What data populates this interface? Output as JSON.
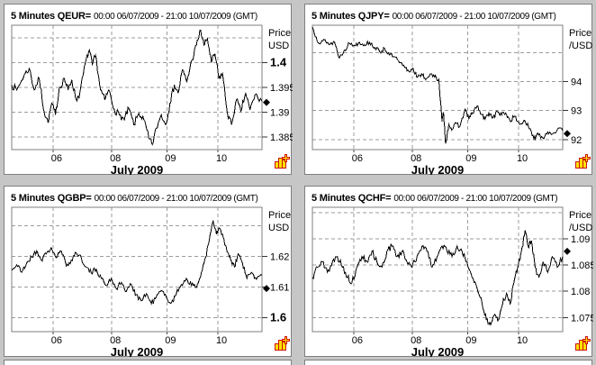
{
  "window": {
    "background": "#c6c6c6",
    "panel_background": "#ffffff",
    "panel_border": "#7f7f7f",
    "gridline_color": "#9b9b9b",
    "series_color": "#000000",
    "icon_yellow": "#ffe000",
    "icon_red": "#cc1111",
    "corner_icon": "chart-object-icon"
  },
  "chart_data": [
    {
      "type": "line",
      "instrument": "QEUR=",
      "title_bold": "5 Minutes QEUR=",
      "title_range": "00:00 06/07/2009 - 21:00 10/07/2009 (GMT)",
      "price_axis_line1": "Price",
      "price_axis_line2": "USD",
      "xlabel": "July 2009",
      "x_ticks": [
        {
          "pos": 0.165,
          "label": "06"
        },
        {
          "pos": 0.4,
          "label": "08"
        },
        {
          "pos": 0.62,
          "label": "09"
        },
        {
          "pos": 0.824,
          "label": "10"
        }
      ],
      "ylim": [
        1.3825,
        1.4075
      ],
      "gridlines": [
        1.405,
        1.4,
        1.395,
        1.39,
        1.385
      ],
      "y_ticks": [
        {
          "value": 1.4,
          "label": "1.4",
          "bold": true
        },
        {
          "value": 1.395,
          "label": "1.395",
          "bold": false
        },
        {
          "value": 1.39,
          "label": "1.39",
          "bold": false
        },
        {
          "value": 1.385,
          "label": "1.385",
          "bold": false
        }
      ],
      "last_price": 1.392,
      "noise_amplitude": 0.0007,
      "seed": 7,
      "points": [
        [
          0.0,
          1.3955
        ],
        [
          0.02,
          1.3945
        ],
        [
          0.05,
          1.3975
        ],
        [
          0.07,
          1.3988
        ],
        [
          0.09,
          1.3945
        ],
        [
          0.11,
          1.3968
        ],
        [
          0.13,
          1.39
        ],
        [
          0.145,
          1.388
        ],
        [
          0.16,
          1.3918
        ],
        [
          0.175,
          1.3895
        ],
        [
          0.19,
          1.3948
        ],
        [
          0.21,
          1.3968
        ],
        [
          0.225,
          1.3945
        ],
        [
          0.24,
          1.3965
        ],
        [
          0.258,
          1.3925
        ],
        [
          0.272,
          1.3938
        ],
        [
          0.295,
          1.4
        ],
        [
          0.31,
          1.4025
        ],
        [
          0.322,
          1.3995
        ],
        [
          0.335,
          1.4015
        ],
        [
          0.355,
          1.3945
        ],
        [
          0.372,
          1.3925
        ],
        [
          0.388,
          1.3945
        ],
        [
          0.41,
          1.3905
        ],
        [
          0.43,
          1.3895
        ],
        [
          0.45,
          1.3885
        ],
        [
          0.468,
          1.3908
        ],
        [
          0.488,
          1.3875
        ],
        [
          0.508,
          1.3898
        ],
        [
          0.528,
          1.3885
        ],
        [
          0.548,
          1.3848
        ],
        [
          0.562,
          1.3835
        ],
        [
          0.578,
          1.3868
        ],
        [
          0.598,
          1.3895
        ],
        [
          0.615,
          1.3875
        ],
        [
          0.632,
          1.3918
        ],
        [
          0.65,
          1.3955
        ],
        [
          0.665,
          1.3938
        ],
        [
          0.682,
          1.3985
        ],
        [
          0.7,
          1.3962
        ],
        [
          0.72,
          1.4005
        ],
        [
          0.738,
          1.4035
        ],
        [
          0.755,
          1.4065
        ],
        [
          0.768,
          1.4035
        ],
        [
          0.782,
          1.4048
        ],
        [
          0.798,
          1.4
        ],
        [
          0.812,
          1.4018
        ],
        [
          0.828,
          1.3968
        ],
        [
          0.842,
          1.3978
        ],
        [
          0.862,
          1.3898
        ],
        [
          0.878,
          1.3875
        ],
        [
          0.898,
          1.3925
        ],
        [
          0.915,
          1.3902
        ],
        [
          0.935,
          1.3938
        ],
        [
          0.952,
          1.3905
        ],
        [
          0.972,
          1.3935
        ],
        [
          1.0,
          1.3922
        ]
      ]
    },
    {
      "type": "line",
      "instrument": "QJPY=",
      "title_bold": "5 Minutes QJPY=",
      "title_range": "00:00 06/07/2009 - 21:00 10/07/2009 (GMT)",
      "price_axis_line1": "Price",
      "price_axis_line2": "/USD",
      "xlabel": "July 2009",
      "x_ticks": [
        {
          "pos": 0.165,
          "label": "06"
        },
        {
          "pos": 0.4,
          "label": "08"
        },
        {
          "pos": 0.62,
          "label": "09"
        },
        {
          "pos": 0.824,
          "label": "10"
        }
      ],
      "ylim": [
        91.65,
        95.95
      ],
      "gridlines": [
        95,
        94,
        93,
        92
      ],
      "y_ticks": [
        {
          "value": 94,
          "label": "94",
          "bold": false
        },
        {
          "value": 93,
          "label": "93",
          "bold": false
        },
        {
          "value": 92,
          "label": "92",
          "bold": false
        }
      ],
      "last_price": 92.2,
      "noise_amplitude": 0.08,
      "seed": 13,
      "points": [
        [
          0.0,
          95.88
        ],
        [
          0.015,
          95.55
        ],
        [
          0.03,
          95.3
        ],
        [
          0.05,
          95.45
        ],
        [
          0.068,
          95.28
        ],
        [
          0.088,
          95.38
        ],
        [
          0.108,
          94.82
        ],
        [
          0.128,
          95.1
        ],
        [
          0.148,
          95.32
        ],
        [
          0.168,
          95.25
        ],
        [
          0.188,
          95.36
        ],
        [
          0.208,
          95.28
        ],
        [
          0.228,
          95.36
        ],
        [
          0.25,
          95.18
        ],
        [
          0.27,
          95.02
        ],
        [
          0.288,
          95.16
        ],
        [
          0.308,
          94.92
        ],
        [
          0.328,
          94.86
        ],
        [
          0.348,
          94.65
        ],
        [
          0.368,
          94.5
        ],
        [
          0.385,
          94.35
        ],
        [
          0.402,
          94.46
        ],
        [
          0.42,
          94.15
        ],
        [
          0.44,
          94.22
        ],
        [
          0.455,
          94.1
        ],
        [
          0.47,
          94.26
        ],
        [
          0.488,
          94.16
        ],
        [
          0.505,
          94.08
        ],
        [
          0.518,
          92.62
        ],
        [
          0.524,
          92.92
        ],
        [
          0.532,
          91.86
        ],
        [
          0.545,
          92.52
        ],
        [
          0.56,
          92.35
        ],
        [
          0.575,
          92.56
        ],
        [
          0.59,
          92.45
        ],
        [
          0.61,
          93.05
        ],
        [
          0.625,
          92.72
        ],
        [
          0.64,
          92.92
        ],
        [
          0.658,
          93.16
        ],
        [
          0.675,
          92.86
        ],
        [
          0.69,
          92.7
        ],
        [
          0.705,
          92.92
        ],
        [
          0.722,
          92.76
        ],
        [
          0.74,
          92.96
        ],
        [
          0.756,
          92.85
        ],
        [
          0.772,
          92.92
        ],
        [
          0.79,
          92.65
        ],
        [
          0.808,
          92.8
        ],
        [
          0.828,
          92.52
        ],
        [
          0.848,
          92.66
        ],
        [
          0.868,
          92.36
        ],
        [
          0.885,
          92.02
        ],
        [
          0.9,
          92.22
        ],
        [
          0.92,
          92.06
        ],
        [
          0.94,
          92.26
        ],
        [
          0.96,
          92.2
        ],
        [
          0.98,
          92.36
        ],
        [
          1.0,
          92.3
        ]
      ]
    },
    {
      "type": "line",
      "instrument": "QGBP=",
      "title_bold": "5 Minutes QGBP=",
      "title_range": "00:00 06/07/2009 - 21:00 10/07/2009 (GMT)",
      "price_axis_line1": "Price",
      "price_axis_line2": "USD",
      "xlabel": "July 2009",
      "x_ticks": [
        {
          "pos": 0.165,
          "label": "06"
        },
        {
          "pos": 0.4,
          "label": "08"
        },
        {
          "pos": 0.62,
          "label": "09"
        },
        {
          "pos": 0.824,
          "label": "10"
        }
      ],
      "ylim": [
        1.5954,
        1.636
      ],
      "gridlines": [
        1.63,
        1.62,
        1.61,
        1.6
      ],
      "y_ticks": [
        {
          "value": 1.62,
          "label": "1.62",
          "bold": false
        },
        {
          "value": 1.61,
          "label": "1.61",
          "bold": false
        },
        {
          "value": 1.6,
          "label": "1.6",
          "bold": true
        }
      ],
      "last_price": 1.6095,
      "noise_amplitude": 0.0009,
      "seed": 21,
      "points": [
        [
          0.0,
          1.6155
        ],
        [
          0.02,
          1.6172
        ],
        [
          0.04,
          1.6148
        ],
        [
          0.06,
          1.6178
        ],
        [
          0.08,
          1.6198
        ],
        [
          0.1,
          1.6218
        ],
        [
          0.118,
          1.6188
        ],
        [
          0.138,
          1.6208
        ],
        [
          0.158,
          1.6228
        ],
        [
          0.178,
          1.6195
        ],
        [
          0.198,
          1.6218
        ],
        [
          0.218,
          1.6168
        ],
        [
          0.238,
          1.6188
        ],
        [
          0.258,
          1.6212
        ],
        [
          0.278,
          1.6195
        ],
        [
          0.298,
          1.6165
        ],
        [
          0.318,
          1.6145
        ],
        [
          0.338,
          1.6158
        ],
        [
          0.358,
          1.6128
        ],
        [
          0.378,
          1.6105
        ],
        [
          0.398,
          1.6128
        ],
        [
          0.418,
          1.6095
        ],
        [
          0.438,
          1.6115
        ],
        [
          0.458,
          1.6085
        ],
        [
          0.478,
          1.6108
        ],
        [
          0.498,
          1.6075
        ],
        [
          0.518,
          1.6055
        ],
        [
          0.538,
          1.6078
        ],
        [
          0.558,
          1.6045
        ],
        [
          0.578,
          1.6068
        ],
        [
          0.598,
          1.6088
        ],
        [
          0.618,
          1.6065
        ],
        [
          0.638,
          1.6048
        ],
        [
          0.658,
          1.6078
        ],
        [
          0.678,
          1.6108
        ],
        [
          0.698,
          1.6128
        ],
        [
          0.718,
          1.6105
        ],
        [
          0.738,
          1.6098
        ],
        [
          0.758,
          1.6148
        ],
        [
          0.775,
          1.6198
        ],
        [
          0.79,
          1.6255
        ],
        [
          0.805,
          1.6315
        ],
        [
          0.818,
          1.6272
        ],
        [
          0.83,
          1.6292
        ],
        [
          0.845,
          1.6262
        ],
        [
          0.86,
          1.6215
        ],
        [
          0.875,
          1.6188
        ],
        [
          0.89,
          1.6165
        ],
        [
          0.905,
          1.6208
        ],
        [
          0.922,
          1.6178
        ],
        [
          0.94,
          1.6128
        ],
        [
          0.958,
          1.6148
        ],
        [
          0.978,
          1.6125
        ],
        [
          1.0,
          1.6138
        ]
      ]
    },
    {
      "type": "line",
      "instrument": "QCHF=",
      "title_bold": "5 Minutes QCHF=",
      "title_range": "00:00 06/07/2009 - 21:00 10/07/2009 (GMT)",
      "price_axis_line1": "Price",
      "price_axis_line2": "/USD",
      "xlabel": "July 2009",
      "x_ticks": [
        {
          "pos": 0.165,
          "label": "06"
        },
        {
          "pos": 0.4,
          "label": "08"
        },
        {
          "pos": 0.62,
          "label": "09"
        },
        {
          "pos": 0.824,
          "label": "10"
        }
      ],
      "ylim": [
        1.0723,
        1.096
      ],
      "gridlines": [
        1.095,
        1.09,
        1.085,
        1.08,
        1.075
      ],
      "y_ticks": [
        {
          "value": 1.09,
          "label": "1.09",
          "bold": false
        },
        {
          "value": 1.085,
          "label": "1.085",
          "bold": false
        },
        {
          "value": 1.08,
          "label": "1.08",
          "bold": false
        },
        {
          "value": 1.075,
          "label": "1.075",
          "bold": false
        }
      ],
      "last_price": 1.0876,
      "noise_amplitude": 0.0006,
      "seed": 35,
      "points": [
        [
          0.0,
          1.0826
        ],
        [
          0.02,
          1.0846
        ],
        [
          0.04,
          1.0856
        ],
        [
          0.06,
          1.0836
        ],
        [
          0.08,
          1.0856
        ],
        [
          0.1,
          1.0866
        ],
        [
          0.12,
          1.0846
        ],
        [
          0.14,
          1.0826
        ],
        [
          0.158,
          1.0816
        ],
        [
          0.178,
          1.0846
        ],
        [
          0.198,
          1.0866
        ],
        [
          0.218,
          1.0856
        ],
        [
          0.238,
          1.0876
        ],
        [
          0.258,
          1.0856
        ],
        [
          0.278,
          1.0846
        ],
        [
          0.298,
          1.0876
        ],
        [
          0.318,
          1.0886
        ],
        [
          0.338,
          1.0866
        ],
        [
          0.358,
          1.0876
        ],
        [
          0.378,
          1.0856
        ],
        [
          0.398,
          1.0846
        ],
        [
          0.418,
          1.0866
        ],
        [
          0.438,
          1.0886
        ],
        [
          0.458,
          1.0876
        ],
        [
          0.478,
          1.0846
        ],
        [
          0.498,
          1.0866
        ],
        [
          0.518,
          1.0886
        ],
        [
          0.538,
          1.0876
        ],
        [
          0.558,
          1.0866
        ],
        [
          0.578,
          1.0886
        ],
        [
          0.598,
          1.0876
        ],
        [
          0.618,
          1.0856
        ],
        [
          0.638,
          1.0826
        ],
        [
          0.658,
          1.0806
        ],
        [
          0.678,
          1.0776
        ],
        [
          0.695,
          1.0746
        ],
        [
          0.712,
          1.0736
        ],
        [
          0.728,
          1.0756
        ],
        [
          0.744,
          1.0746
        ],
        [
          0.76,
          1.0776
        ],
        [
          0.775,
          1.0796
        ],
        [
          0.79,
          1.0776
        ],
        [
          0.805,
          1.0816
        ],
        [
          0.82,
          1.0846
        ],
        [
          0.835,
          1.0876
        ],
        [
          0.85,
          1.0916
        ],
        [
          0.862,
          1.0886
        ],
        [
          0.875,
          1.0896
        ],
        [
          0.89,
          1.0846
        ],
        [
          0.905,
          1.0826
        ],
        [
          0.922,
          1.0856
        ],
        [
          0.94,
          1.0836
        ],
        [
          0.958,
          1.0866
        ],
        [
          0.978,
          1.0846
        ],
        [
          1.0,
          1.0866
        ]
      ]
    }
  ]
}
